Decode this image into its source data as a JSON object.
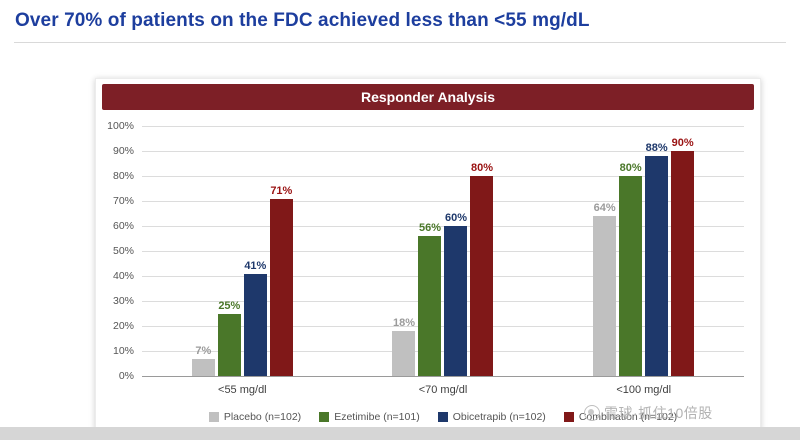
{
  "page": {
    "title": "Over 70% of patients on the FDC achieved less than <55 mg/dL"
  },
  "colors": {
    "title_accent": "#1d3e9e",
    "chart_header_bg": "#7d1f26",
    "placebo": "#c0c0c0",
    "ezetimibe": "#4a7729",
    "obicetrapib": "#1e386b",
    "combination": "#801818"
  },
  "chart_data": {
    "type": "bar",
    "title": "Responder Analysis",
    "categories": [
      "<55 mg/dl",
      "<70 mg/dl",
      "<100 mg/dl"
    ],
    "series": [
      {
        "name": "Placebo (n=102)",
        "color": "#c0c0c0",
        "label_color": "#9b9b9b",
        "values": [
          7,
          18,
          64
        ]
      },
      {
        "name": "Ezetimibe (n=101)",
        "color": "#4a7729",
        "label_color": "#4a7729",
        "values": [
          25,
          56,
          80
        ]
      },
      {
        "name": "Obicetrapib (n=102)",
        "color": "#1e386b",
        "label_color": "#1e386b",
        "values": [
          41,
          60,
          88
        ]
      },
      {
        "name": "Combination (n=102)",
        "color": "#801818",
        "label_color": "#9a1212",
        "values": [
          71,
          80,
          90
        ]
      }
    ],
    "ylim": [
      0,
      100
    ],
    "ytick_step": 10,
    "grid": true,
    "legend_position": "bottom"
  },
  "watermark": {
    "text": "雪球·抓住10倍股"
  }
}
